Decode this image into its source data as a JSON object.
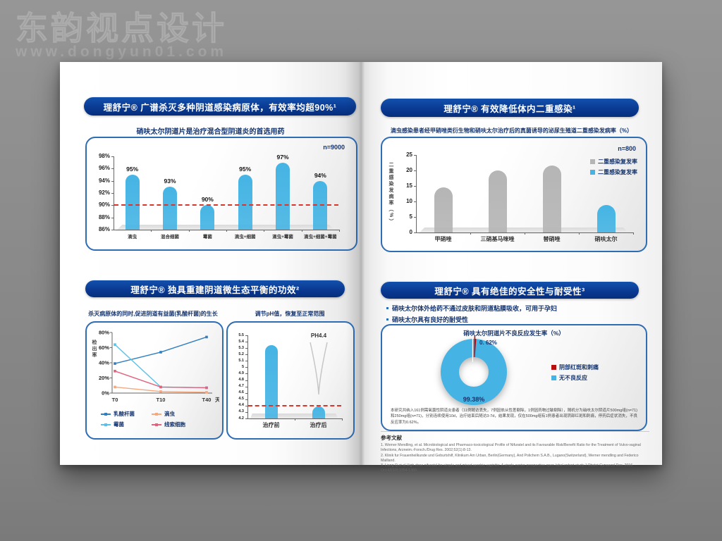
{
  "watermark": {
    "title": "东韵视点设计",
    "url": "www.dongyun01.com"
  },
  "left_page": {
    "section1": {
      "header": "理舒宁® 广谱杀灭多种阴道感染病原体，有效率均超90%¹",
      "subtitle": "硝呋太尔阴道片是治疗混合型阴道炎的首选用药",
      "sample_size": "n=9000"
    },
    "section2": {
      "header": "理舒宁® 独具重建阴道微生态平衡的功效²",
      "left_subtitle": "杀灭病原体的同时,促进阴道有益菌(乳酸杆菌)的生长",
      "right_subtitle": "调节pH值，恢复至正常范围"
    }
  },
  "right_page": {
    "section1": {
      "header": "理舒宁® 有效降低体内二重感染¹",
      "subtitle": "滴虫感染患者经甲硝唑类衍生物和硝呋太尔治疗后的真菌诱导的泌尿生殖道二重感染发病率（%）",
      "sample_size": "n=800"
    },
    "section2": {
      "header": "理舒宁® 具有绝佳的安全性与耐受性³",
      "bullets": [
        "硝呋太尔体外给药不通过皮肤和阴道粘膜吸收，可用于孕妇",
        "硝呋太尔具有良好的耐受性"
      ],
      "chart_title": "硝呋太尔阴道片不良反应发生率（%）",
      "note": "本研究共纳入161例需氧菌性阴道炎患者（11例随访丢失，7例因依从性差剔除，1例因药物过敏剔除），随机分为硝呋太尔阴道片500mg组(n=71)和250mg组(n=71)，分别连续使用10d，治疗结束后随访3-7d，结果发现，仅在500mg组有1例患者出现阴部红斑和刺痛，停药后症状消失，不良反应率为0.62%。"
    },
    "references": {
      "heading": "参考文献",
      "items": [
        "1. Werner Mendling, et al. Microbiological and Pharmaco-toxicological Profile of Nifuratel and its Favourable Risk/Benefit Ratio for the Treatment of Vulvo-vaginal Infections, Arzneim.-Forsch./Drug Res. 2002;52(1):8-13.",
        "2. Klinik fur Frauenheilkunde und Geburtshilf, Klinikum Am Urban, Berlin(Germany), And Polichem S.A.B., Lugano(Switzerland), Werner mendling and Federico Mailland.",
        "3. Liang Q,et al.High-dose nifuratel for simple and mixed aerobic vaginitis: A single-center prospective open-label cohort study.J Obstet Gynaecol Res. 2016 Oct;42(10):1354-1360."
      ]
    }
  },
  "chart_data": [
    {
      "id": "efficacy",
      "type": "bar",
      "title": "硝呋太尔阴道片是治疗混合型阴道炎的首选用药",
      "sample": "n=9000",
      "categories": [
        "滴虫",
        "混合细菌",
        "霉菌",
        "滴虫+细菌",
        "滴虫+霉菌",
        "滴虫+细菌+霉菌"
      ],
      "values": [
        95,
        93,
        90,
        95,
        97,
        94
      ],
      "unit": "%",
      "ylim": [
        86,
        98
      ],
      "ytick_step": 2,
      "ref_line": 90,
      "bar_color": "#45b4e4",
      "ref_color": "#d9352a"
    },
    {
      "id": "superinfection",
      "type": "bar",
      "title": "滴虫感染患者经甲硝唑类衍生物和硝呋太尔治疗后的真菌诱导的泌尿生殖道二重感染发病率（%）",
      "sample": "n=800",
      "ylabel": "二重感染发病率（%）",
      "categories": [
        "甲硝唑",
        "三硝基马咪唑",
        "替硝唑",
        "硝呋太尔"
      ],
      "values": [
        14.5,
        20,
        21.5,
        8.8
      ],
      "bar_colors": [
        "#b5b5b5",
        "#b5b5b5",
        "#b5b5b5",
        "#45b4e4"
      ],
      "ylim": [
        0,
        25
      ],
      "ytick_step": 5,
      "legend": [
        {
          "label": "二重感染复发率",
          "color": "#b5b5b5"
        },
        {
          "label": "二重感染复发率",
          "color": "#45b4e4"
        }
      ]
    },
    {
      "id": "microbiome",
      "type": "line",
      "ylabel": "检出率",
      "x": [
        "T0",
        "T10",
        "T40"
      ],
      "x_unit": "天",
      "ylim": [
        0,
        80
      ],
      "ytick_step": 20,
      "series": [
        {
          "name": "乳酸杆菌",
          "color": "#2f7fc1",
          "values": [
            39,
            54,
            74
          ]
        },
        {
          "name": "霉菌",
          "color": "#5bc2e7",
          "values": [
            64,
            8,
            7
          ]
        },
        {
          "name": "滴虫",
          "color": "#f4a97f",
          "values": [
            8,
            2,
            1
          ]
        },
        {
          "name": "线索细胞",
          "color": "#e2637e",
          "values": [
            29,
            8,
            7
          ]
        }
      ]
    },
    {
      "id": "ph",
      "type": "bar",
      "categories": [
        "治疗前",
        "治疗后"
      ],
      "values": [
        5.35,
        4.39
      ],
      "ylim": [
        4.2,
        5.5
      ],
      "ytick_step": 0.1,
      "ref_line": 4.4,
      "annotation": "PH4.4",
      "bar_color": "#45b4e4",
      "ref_color": "#d9352a"
    },
    {
      "id": "safety",
      "type": "pie",
      "title": "硝呋太尔阴道片不良反应发生率（%）",
      "slices": [
        {
          "label": "阴部红斑和刺痛",
          "value": 0.62,
          "color": "#b60d0d",
          "display": "0. 62%"
        },
        {
          "label": "无不良反应",
          "value": 99.38,
          "color": "#45b4e4",
          "display": "99.38%"
        }
      ]
    }
  ],
  "colors": {
    "header_blue": "#0a3a92",
    "bar_blue": "#45b4e4",
    "bar_gray": "#b5b5b5",
    "ref_red": "#d9352a",
    "slice_red": "#b60d0d",
    "navy_text": "#16356e"
  }
}
